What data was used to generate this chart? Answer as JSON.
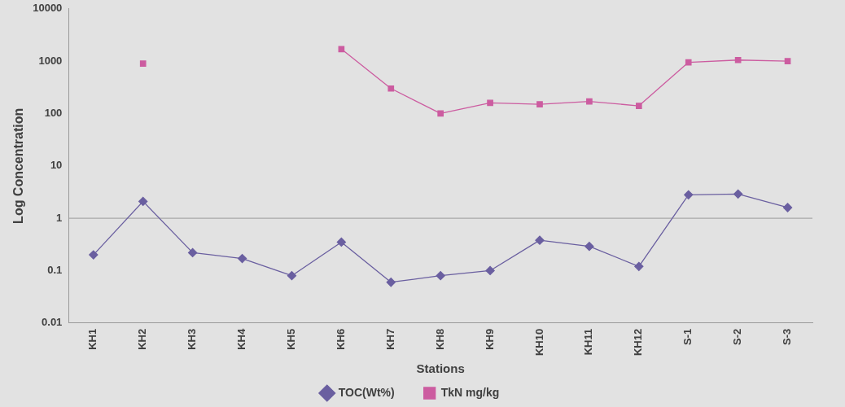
{
  "chart_data": {
    "type": "line",
    "xlabel": "Stations",
    "ylabel": "Log Concentration",
    "categories": [
      "KH1",
      "KH2",
      "KH3",
      "KH4",
      "KH5",
      "KH6",
      "KH7",
      "KH8",
      "KH9",
      "KH10",
      "KH11",
      "KH12",
      "S-1",
      "S-2",
      "S-3"
    ],
    "series": [
      {
        "name": "TOC(Wt%)",
        "color": "#6a5fa0",
        "marker": "diamond",
        "values": [
          0.2,
          2.1,
          0.22,
          0.17,
          0.08,
          0.35,
          0.06,
          0.08,
          0.1,
          0.38,
          0.29,
          0.12,
          2.8,
          2.9,
          1.6
        ]
      },
      {
        "name": "TkN mg/kg",
        "color": "#cc5ca0",
        "marker": "square",
        "values": [
          null,
          900,
          null,
          null,
          null,
          1700,
          300,
          100,
          160,
          150,
          170,
          140,
          950,
          1050,
          1000
        ]
      }
    ],
    "log": "y",
    "ylim": [
      0.01,
      10000
    ],
    "yticks": [
      0.01,
      0.1,
      1,
      10,
      100,
      1000,
      10000
    ],
    "ref_lines": [
      {
        "axis": "y",
        "value": 1,
        "color": "#9a9a9a"
      }
    ],
    "grid": false,
    "legend": "bottom",
    "line_style": "solid"
  }
}
